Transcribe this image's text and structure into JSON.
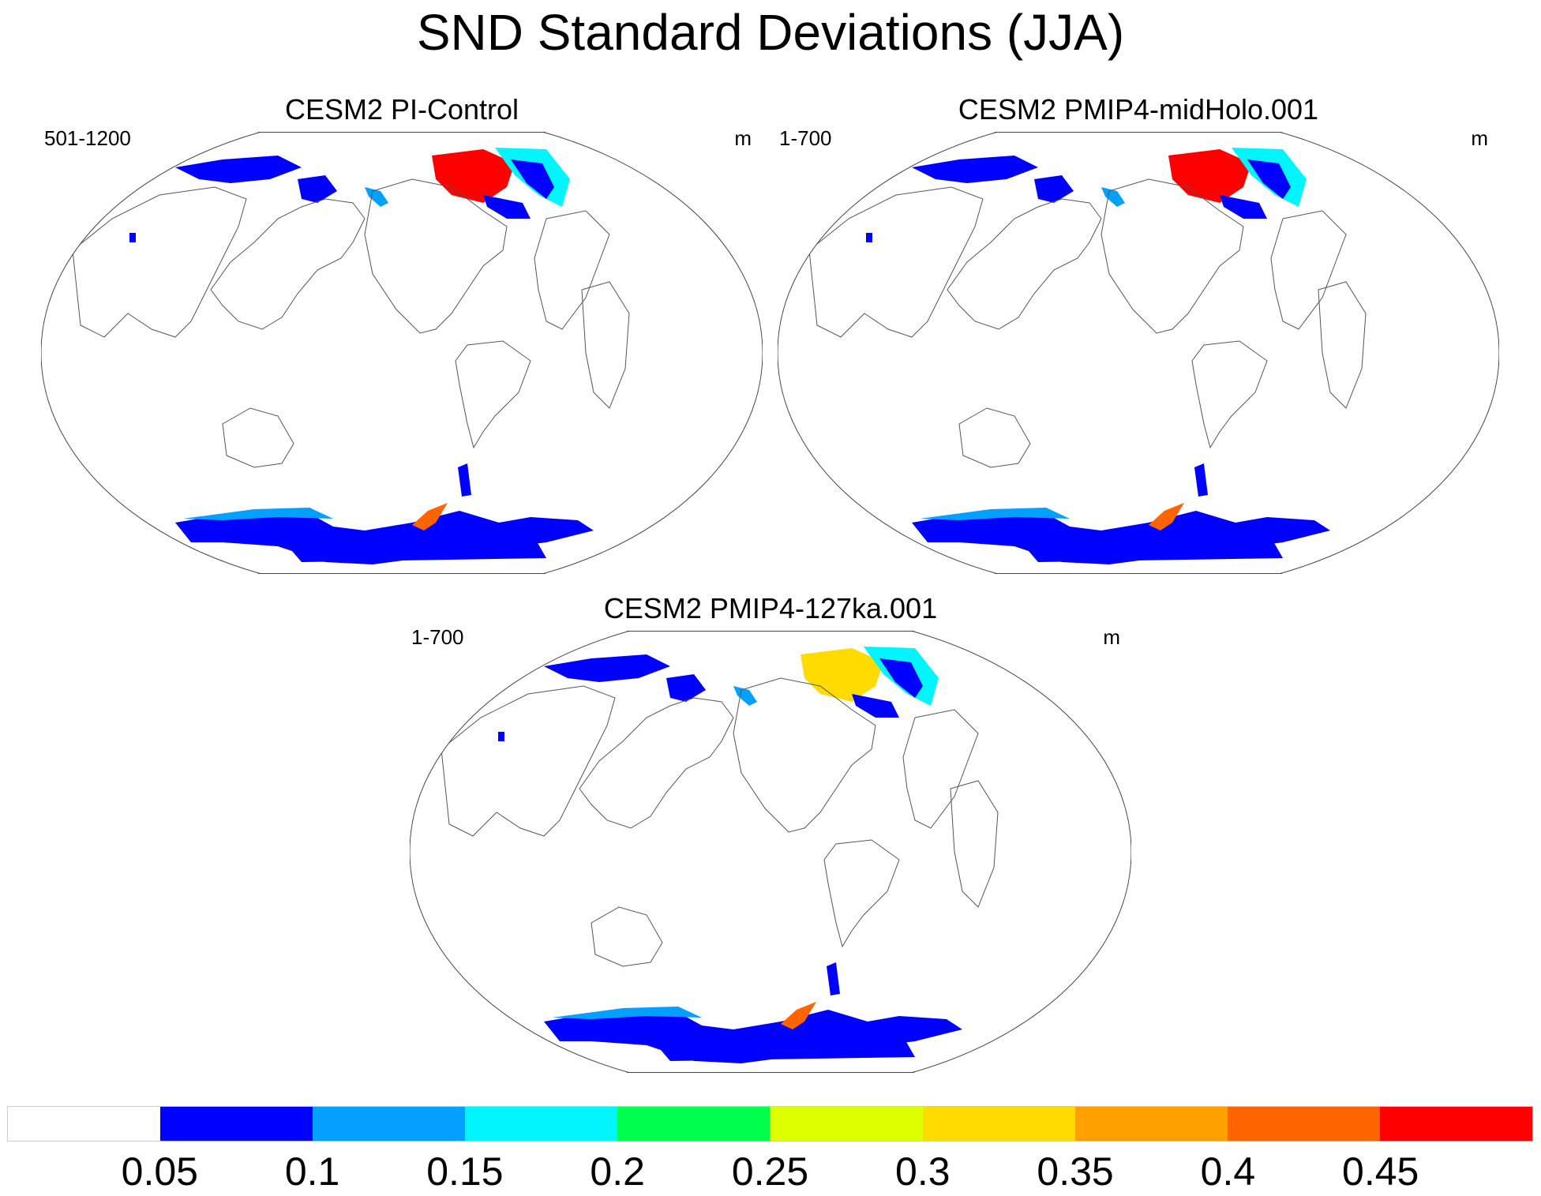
{
  "title": "SND Standard Deviations (JJA)",
  "panels": [
    {
      "title": "CESM2 PI-Control",
      "left_label": "501-1200",
      "units": "m"
    },
    {
      "title": "CESM2 PMIP4-midHolo.001",
      "left_label": "1-700",
      "units": "m"
    },
    {
      "title": "CESM2 PMIP4-127ka.001",
      "left_label": "1-700",
      "units": "m"
    }
  ],
  "colorbar": {
    "colors": [
      "#ffffff",
      "#0000ff",
      "#03a0ff",
      "#00f5ff",
      "#00ff4c",
      "#ddff00",
      "#ffdb00",
      "#ffa000",
      "#ff6400",
      "#ff0000"
    ],
    "labels": [
      "0.05",
      "0.1",
      "0.15",
      "0.2",
      "0.25",
      "0.3",
      "0.35",
      "0.4",
      "0.45"
    ]
  }
}
